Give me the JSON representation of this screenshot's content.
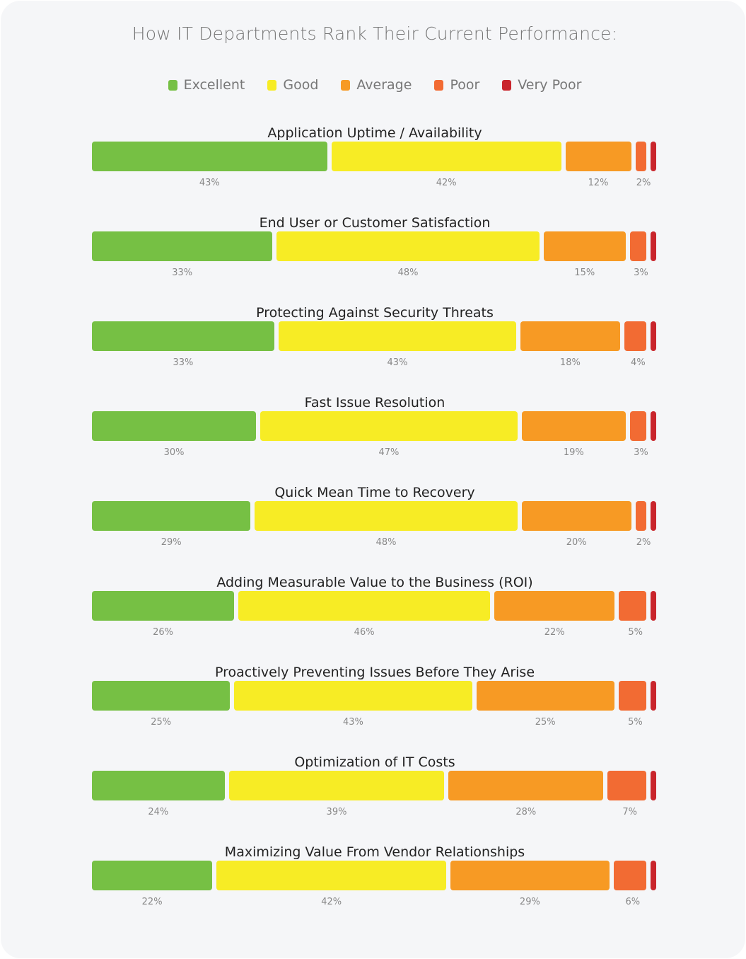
{
  "chart_data": {
    "type": "bar",
    "orientation": "horizontal-stacked",
    "title": "How IT Departments Rank Their Current Performance:",
    "legend_position": "top",
    "series": [
      {
        "name": "Excellent",
        "color": "#76c044"
      },
      {
        "name": "Good",
        "color": "#f7ec25"
      },
      {
        "name": "Average",
        "color": "#f79a24"
      },
      {
        "name": "Poor",
        "color": "#f26b33"
      },
      {
        "name": "Very Poor",
        "color": "#c9252c"
      }
    ],
    "categories": [
      "Application Uptime / Availability",
      "End User or Customer Satisfaction",
      "Protecting Against Security Threats",
      "Fast Issue Resolution",
      "Quick Mean Time to Recovery",
      "Adding Measurable Value to the Business (ROI)",
      "Proactively Preventing Issues Before They Arise",
      "Optimization of IT Costs",
      "Maximizing Value From Vendor Relationships"
    ],
    "values": [
      [
        43,
        42,
        12,
        2,
        null
      ],
      [
        33,
        48,
        15,
        3,
        null
      ],
      [
        33,
        43,
        18,
        4,
        null
      ],
      [
        30,
        47,
        19,
        3,
        null
      ],
      [
        29,
        48,
        20,
        2,
        null
      ],
      [
        26,
        46,
        22,
        5,
        null
      ],
      [
        25,
        43,
        25,
        5,
        null
      ],
      [
        24,
        39,
        28,
        7,
        null
      ],
      [
        22,
        42,
        29,
        6,
        null
      ]
    ],
    "value_suffix": "%",
    "grid": false
  }
}
